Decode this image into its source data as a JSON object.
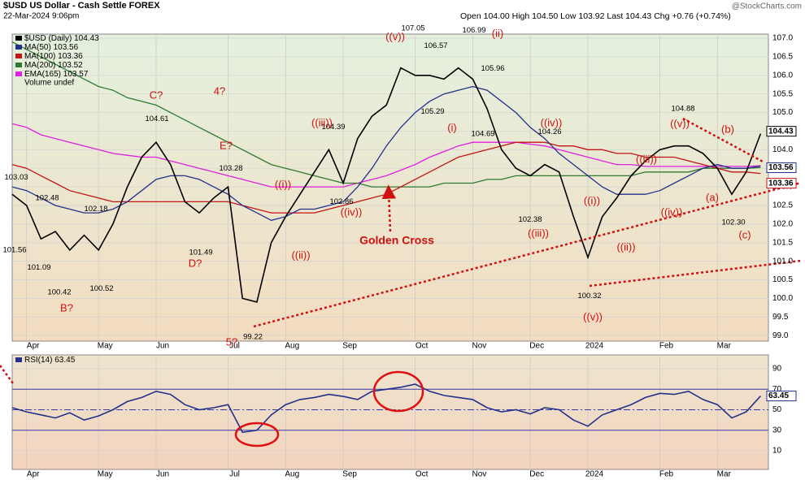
{
  "chart_data": [
    {
      "type": "line",
      "title": "$USD US Dollar - Cash Settle FOREX",
      "subtitle": "22-Mar-2024 9:06pm",
      "quote": "Open 104.00 High 104.50 Low 103.92 Last 104.43 Chg +0.76 (+0.74%)",
      "copyright": "@StockCharts.com",
      "volume_legend": "Volume undef",
      "categories": [
        null,
        "Apr",
        null,
        null,
        null,
        null,
        "May",
        null,
        null,
        null,
        "Jun",
        null,
        null,
        null,
        null,
        "Jul",
        null,
        null,
        null,
        "Aug",
        null,
        null,
        null,
        "Sep",
        null,
        null,
        null,
        null,
        "Oct",
        null,
        null,
        null,
        "Nov",
        null,
        null,
        null,
        "Dec",
        null,
        null,
        null,
        "2024",
        null,
        null,
        null,
        null,
        "Feb",
        null,
        null,
        null,
        "Mar",
        null,
        null,
        null
      ],
      "series": [
        {
          "name": "$USD (Daily)",
          "color": "#000000",
          "values": [
            102.8,
            102.5,
            101.6,
            101.8,
            101.3,
            101.7,
            101.3,
            102.0,
            103.0,
            103.8,
            104.2,
            103.6,
            102.6,
            102.3,
            102.7,
            103.0,
            100.0,
            99.9,
            101.5,
            102.2,
            102.8,
            103.4,
            104.0,
            103.1,
            104.3,
            104.9,
            105.2,
            106.2,
            106.0,
            106.0,
            105.9,
            106.2,
            105.9,
            105.1,
            104.0,
            103.5,
            103.3,
            103.6,
            103.4,
            102.2,
            101.1,
            102.2,
            102.7,
            103.3,
            103.7,
            104.0,
            104.1,
            104.1,
            103.9,
            103.5,
            102.8,
            103.4,
            104.43
          ]
        },
        {
          "name": "MA(50)",
          "color": "#23308c",
          "values": [
            103.0,
            102.9,
            102.7,
            102.5,
            102.4,
            102.3,
            102.3,
            102.4,
            102.6,
            102.9,
            103.2,
            103.3,
            103.3,
            103.2,
            103.0,
            102.8,
            102.5,
            102.3,
            102.1,
            102.2,
            102.4,
            102.4,
            102.5,
            102.6,
            103.0,
            103.5,
            104.1,
            104.6,
            105.0,
            105.3,
            105.5,
            105.6,
            105.7,
            105.6,
            105.3,
            105.0,
            104.6,
            104.3,
            103.9,
            103.6,
            103.3,
            103.0,
            102.8,
            102.8,
            102.8,
            102.9,
            103.1,
            103.3,
            103.5,
            103.6,
            103.5,
            103.5,
            103.56
          ]
        },
        {
          "name": "MA(100)",
          "color": "#c41414",
          "values": [
            103.6,
            103.5,
            103.3,
            103.1,
            102.9,
            102.8,
            102.7,
            102.6,
            102.6,
            102.6,
            102.6,
            102.6,
            102.6,
            102.6,
            102.6,
            102.6,
            102.5,
            102.4,
            102.3,
            102.3,
            102.3,
            102.3,
            102.4,
            102.5,
            102.6,
            102.7,
            102.8,
            103.0,
            103.2,
            103.4,
            103.6,
            103.8,
            103.9,
            104.0,
            104.1,
            104.2,
            104.2,
            104.2,
            104.1,
            104.1,
            104.0,
            104.0,
            103.9,
            103.9,
            103.8,
            103.8,
            103.8,
            103.7,
            103.6,
            103.5,
            103.4,
            103.4,
            103.36
          ]
        },
        {
          "name": "MA(200)",
          "color": "#2f7a2f",
          "values": [
            106.9,
            106.7,
            106.5,
            106.3,
            106.1,
            105.9,
            105.7,
            105.6,
            105.4,
            105.3,
            105.2,
            105.0,
            104.8,
            104.6,
            104.4,
            104.2,
            104.0,
            103.8,
            103.6,
            103.5,
            103.4,
            103.3,
            103.2,
            103.1,
            103.1,
            103.0,
            103.0,
            103.0,
            103.0,
            103.0,
            103.1,
            103.1,
            103.1,
            103.2,
            103.2,
            103.3,
            103.3,
            103.3,
            103.3,
            103.3,
            103.3,
            103.3,
            103.3,
            103.3,
            103.4,
            103.4,
            103.4,
            103.4,
            103.5,
            103.5,
            103.5,
            103.5,
            103.52
          ]
        },
        {
          "name": "EMA(165)",
          "color": "#e020e0",
          "values": [
            104.7,
            104.6,
            104.4,
            104.3,
            104.2,
            104.1,
            104.0,
            103.9,
            103.85,
            103.8,
            103.8,
            103.7,
            103.6,
            103.5,
            103.4,
            103.3,
            103.2,
            103.1,
            103.0,
            103.0,
            103.0,
            103.0,
            103.0,
            103.0,
            103.1,
            103.2,
            103.3,
            103.45,
            103.6,
            103.8,
            103.95,
            104.1,
            104.2,
            104.2,
            104.2,
            104.2,
            104.15,
            104.1,
            104.0,
            103.9,
            103.8,
            103.7,
            103.6,
            103.6,
            103.55,
            103.55,
            103.55,
            103.55,
            103.55,
            103.55,
            103.55,
            103.55,
            103.57
          ]
        }
      ],
      "ylim": [
        98.85,
        107.11
      ],
      "yticks": [
        {
          "value": 99,
          "label": "99.0"
        },
        99.5,
        {
          "value": 100,
          "label": "100.0"
        },
        100.5,
        {
          "value": 101,
          "label": "101.0"
        },
        101.5,
        {
          "value": 102,
          "label": "102.0"
        },
        102.5,
        {
          "value": 103,
          "label": "103.0"
        },
        103.5,
        {
          "value": 104,
          "label": "104.0"
        },
        104.5,
        {
          "value": 105,
          "label": "105.0"
        },
        105.5,
        {
          "value": 106,
          "label": "106.0"
        },
        106.5,
        {
          "value": 107,
          "label": "107.0"
        }
      ],
      "grid": true,
      "price_points": {
        "values": [
          103.03,
          102.48,
          101.56,
          101.09,
          100.42,
          102.18,
          100.52,
          104.61,
          103.28,
          101.49,
          99.22,
          102.86,
          104.39,
          107.05,
          106.57,
          105.29,
          106.99,
          105.96,
          104.69,
          104.26,
          102.38,
          100.32,
          104.88,
          102.3
        ],
        "value_labels": [
          "103.03",
          "102.48",
          "101.56",
          "101.09",
          "100.42",
          "102.18",
          "100.52",
          "104.61",
          "103.28",
          "101.49",
          "99.22",
          "102.86",
          "104.39",
          "107.05",
          "106.57",
          "105.29",
          "106.99",
          "105.96",
          "104.69",
          "104.26",
          "102.38",
          "100.32",
          "104.88",
          "102.30"
        ]
      },
      "annotations": [
        "B?",
        "C?",
        "D?",
        "E?",
        "4?",
        "5?",
        "((i))",
        "((ii))",
        "((iii))",
        "((iv))",
        "((v))",
        "(i)",
        "(ii)",
        "((iii))",
        "((iv))",
        "((v))",
        "((i))",
        "((ii))",
        "((iii))",
        "((iv))",
        "((v))",
        "(b)",
        "(a)",
        "(c)",
        "Golden Cross"
      ]
    },
    {
      "type": "line",
      "series": [
        {
          "name": "RSI(14)",
          "color": "#23308c",
          "values": [
            52,
            48,
            45,
            42,
            47,
            40,
            44,
            50,
            58,
            62,
            68,
            65,
            55,
            50,
            52,
            55,
            28,
            30,
            45,
            55,
            60,
            62,
            65,
            63,
            60,
            68,
            70,
            72,
            75,
            68,
            64,
            62,
            60,
            52,
            48,
            50,
            46,
            52,
            50,
            40,
            34,
            45,
            50,
            55,
            62,
            66,
            65,
            68,
            60,
            55,
            42,
            48,
            63.45
          ]
        }
      ],
      "ylim": [
        -8.2,
        103.5
      ],
      "yticks": [
        10,
        30,
        50,
        70,
        90
      ],
      "reference_lines": [
        30,
        50,
        70
      ]
    }
  ]
}
